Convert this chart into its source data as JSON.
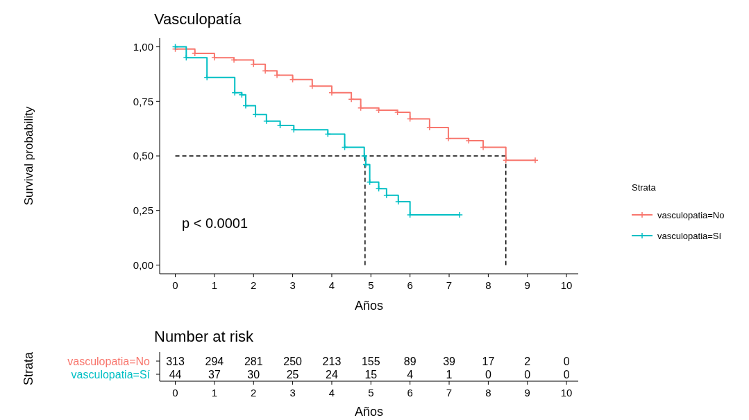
{
  "chart_data": [
    {
      "type": "step",
      "title": "Vasculopatía",
      "xlabel": "Años",
      "ylabel": "Survival probability",
      "legend_title": "Strata",
      "legend": "right",
      "marker": "cross",
      "xlim": [
        -0.4,
        10.3
      ],
      "ylim": [
        -0.04,
        1.04
      ],
      "xticks": [
        0,
        1,
        2,
        3,
        4,
        5,
        6,
        7,
        8,
        9,
        10
      ],
      "yticks": [
        {
          "value": 0,
          "label": "0,00"
        },
        {
          "value": 0.25,
          "label": "0,25"
        },
        {
          "value": 0.5,
          "label": "0,50"
        },
        {
          "value": 0.75,
          "label": "0,75"
        },
        {
          "value": 1,
          "label": "1,00"
        }
      ],
      "annotations": [
        "p < 0.0001"
      ],
      "ref_lines": [
        {
          "axis": "y",
          "value": 0.5,
          "color": "#000000",
          "line_style": "dashed"
        },
        {
          "axis": "x",
          "value": 4.85,
          "color": "#000000",
          "line_style": "dashed"
        },
        {
          "axis": "x",
          "value": 8.45,
          "color": "#000000",
          "line_style": "dashed"
        }
      ],
      "series": [
        {
          "name": "vasculopatia=No",
          "color": "#f8766d",
          "x": [
            0,
            0.5,
            1,
            1.5,
            2,
            2.3,
            2.6,
            3,
            3.5,
            4,
            4.5,
            4.74,
            5.2,
            5.68,
            6,
            6.5,
            6.98,
            7.5,
            7.87,
            8.45,
            9.2
          ],
          "values": [
            0.99,
            0.97,
            0.95,
            0.94,
            0.92,
            0.89,
            0.87,
            0.85,
            0.82,
            0.79,
            0.76,
            0.72,
            0.71,
            0.7,
            0.67,
            0.63,
            0.58,
            0.57,
            0.54,
            0.48,
            0.48
          ]
        },
        {
          "name": "vasculopatia=Sí",
          "color": "#00bfc4",
          "x": [
            0,
            0.28,
            0.81,
            1.52,
            1.7,
            1.8,
            2.05,
            2.33,
            2.68,
            3.03,
            3.9,
            4.33,
            4.83,
            4.87,
            4.97,
            5.2,
            5.4,
            5.7,
            6,
            7.27
          ],
          "values": [
            1,
            0.95,
            0.86,
            0.79,
            0.78,
            0.73,
            0.69,
            0.66,
            0.64,
            0.62,
            0.6,
            0.54,
            0.5,
            0.46,
            0.38,
            0.35,
            0.32,
            0.29,
            0.23,
            0.23
          ]
        }
      ]
    },
    {
      "type": "heatmap",
      "title": "Number at risk",
      "xlabel": "Años",
      "ylabel": "Strata",
      "data_labels": true,
      "categories": [
        "0",
        "1",
        "2",
        "3",
        "4",
        "5",
        "6",
        "7",
        "8",
        "9",
        "10"
      ],
      "y_categories": [
        "vasculopatia=No",
        "vasculopatia=Sí"
      ],
      "colors": [
        "#f8766d",
        "#00bfc4"
      ],
      "cells": [
        [
          313,
          294,
          281,
          250,
          213,
          155,
          89,
          39,
          17,
          2,
          0
        ],
        [
          44,
          37,
          30,
          25,
          24,
          15,
          4,
          1,
          0,
          0,
          0
        ]
      ]
    }
  ]
}
